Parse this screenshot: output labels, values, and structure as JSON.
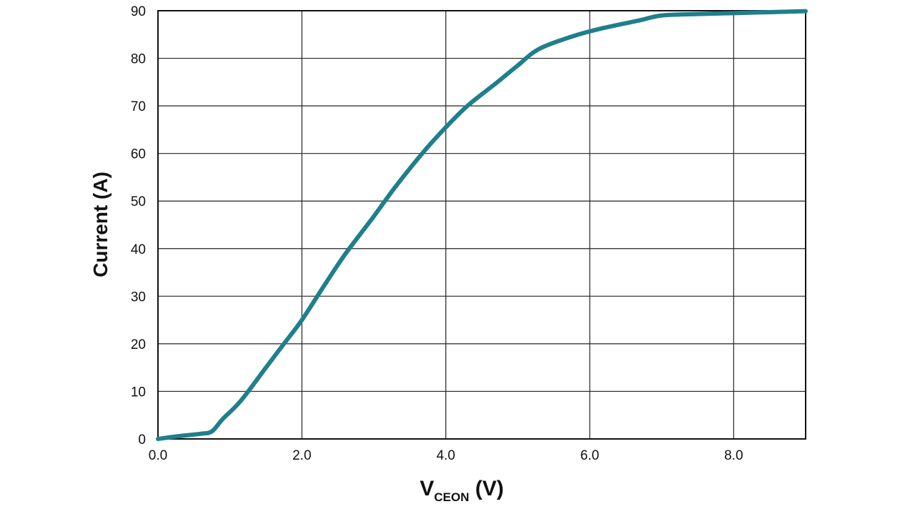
{
  "chart_data": {
    "type": "line",
    "xlabel": {
      "main": "V",
      "subscript": "CEON",
      "suffix": " (V)"
    },
    "ylabel": "Current (A)",
    "xlim": [
      0,
      9
    ],
    "ylim": [
      0,
      90
    ],
    "x_ticks": [
      0,
      2,
      4,
      6,
      8
    ],
    "x_tick_labels": [
      "0.0",
      "2.0",
      "4.0",
      "6.0",
      "8.0"
    ],
    "x_gridlines": [
      0,
      2,
      4,
      6,
      8,
      9
    ],
    "y_ticks": [
      0,
      10,
      20,
      30,
      40,
      50,
      60,
      70,
      80,
      90
    ],
    "y_tick_labels": [
      "0",
      "10",
      "20",
      "30",
      "40",
      "50",
      "60",
      "70",
      "80",
      "90"
    ],
    "grid": true,
    "series": [
      {
        "color": "#1f7f8c",
        "x": [
          0,
          0.3,
          0.6,
          0.75,
          0.9,
          1.15,
          1.5,
          1.75,
          2.0,
          2.3,
          2.6,
          3.0,
          3.3,
          3.7,
          4.0,
          4.3,
          4.7,
          5.0,
          5.3,
          5.8,
          6.2,
          6.7,
          7.0,
          7.5,
          8.0,
          8.5,
          9.0
        ],
        "y": [
          0,
          0.6,
          1.1,
          1.6,
          4.2,
          8.0,
          15.0,
          20.0,
          25.0,
          32.0,
          38.8,
          46.8,
          53.0,
          60.5,
          65.5,
          70.0,
          74.8,
          78.5,
          82.0,
          84.8,
          86.4,
          88.0,
          89.0,
          89.3,
          89.5,
          89.7,
          89.9
        ]
      }
    ]
  }
}
